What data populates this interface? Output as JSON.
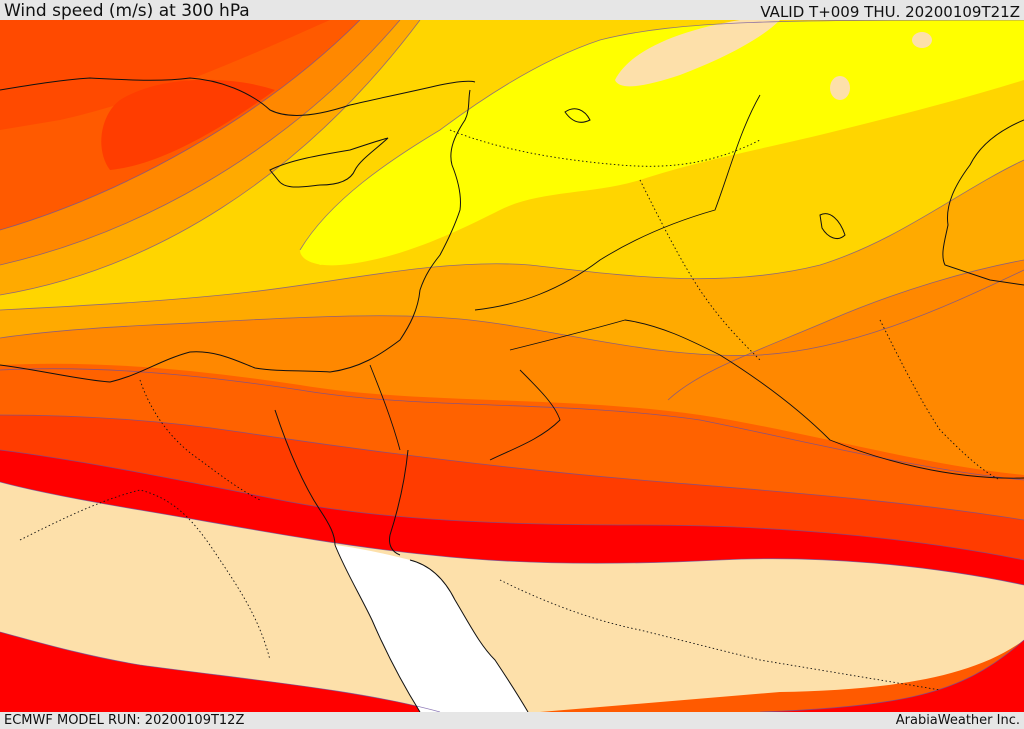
{
  "header": {
    "title": "Wind speed (m/s) at 300 hPa",
    "valid": "VALID T+009 THU. 20200109T21Z"
  },
  "footer": {
    "model_run": "ECMWF MODEL RUN: 20200109T12Z",
    "credit": "ArabiaWeather Inc."
  },
  "map": {
    "field": "wind speed",
    "fill_colors": {
      "calm": "#fde0aa",
      "sea_low": "#ffffff",
      "band_yellow": "#ffff00",
      "band_gold": "#ffd700",
      "band_amber": "#ffb000",
      "band_orange": "#ff8c00",
      "band_dark_orange": "#ff6600",
      "band_red_orange": "#ff3300",
      "band_red": "#ff0000"
    }
  }
}
